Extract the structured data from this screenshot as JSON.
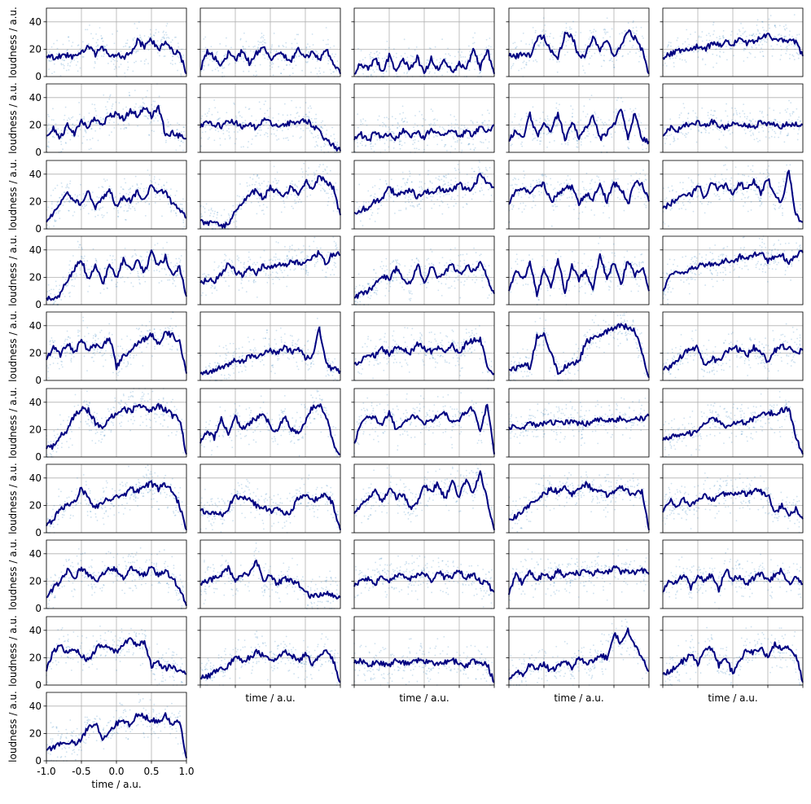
{
  "figure": {
    "layout": "small multiples grid, 10 rows x 5 columns, 46 panels, shared axes",
    "xlabel": "time / a.u.",
    "ylabel": "loudness / a.u.",
    "x_ticks": [
      "-1.0",
      "-0.5",
      "0.0",
      "0.5",
      "1.0"
    ],
    "y_ticks": [
      "0",
      "20",
      "40"
    ]
  },
  "chart_data": {
    "type": "line",
    "overlay": "scatter",
    "description_of_marks": "each panel: light blue scatter of raw loudness samples with a dark navy smoothed line",
    "xlim": [
      -1.0,
      1.0
    ],
    "ylim": [
      0,
      50
    ],
    "xlabel": "time / a.u.",
    "ylabel": "loudness / a.u.",
    "grid": true,
    "line_color": "#000080",
    "scatter_color": "#1f77b4",
    "x": [
      -1.0,
      -0.9,
      -0.8,
      -0.7,
      -0.6,
      -0.5,
      -0.4,
      -0.3,
      -0.2,
      -0.1,
      0.0,
      0.1,
      0.2,
      0.3,
      0.4,
      0.5,
      0.6,
      0.7,
      0.8,
      0.9,
      1.0
    ],
    "series": [
      {
        "values": [
          15,
          14,
          15,
          16,
          14,
          17,
          23,
          16,
          22,
          15,
          16,
          14,
          17,
          26,
          22,
          27,
          19,
          26,
          18,
          18,
          2
        ]
      },
      {
        "values": [
          5,
          19,
          14,
          8,
          17,
          12,
          19,
          10,
          17,
          21,
          13,
          18,
          15,
          12,
          20,
          14,
          18,
          12,
          20,
          10,
          2
        ]
      },
      {
        "values": [
          2,
          10,
          5,
          14,
          3,
          15,
          4,
          12,
          6,
          14,
          2,
          13,
          5,
          12,
          3,
          10,
          4,
          22,
          6,
          20,
          2
        ]
      },
      {
        "values": [
          15,
          15,
          16,
          15,
          27,
          30,
          18,
          14,
          31,
          30,
          14,
          16,
          30,
          18,
          27,
          14,
          22,
          33,
          28,
          20,
          2
        ]
      },
      {
        "values": [
          14,
          16,
          18,
          20,
          21,
          22,
          20,
          24,
          23,
          25,
          24,
          27,
          24,
          26,
          28,
          30,
          27,
          26,
          27,
          25,
          15
        ]
      },
      {
        "values": [
          12,
          17,
          10,
          20,
          14,
          22,
          18,
          25,
          21,
          26,
          28,
          24,
          31,
          27,
          33,
          26,
          34,
          13,
          14,
          12,
          10
        ]
      },
      {
        "values": [
          18,
          22,
          20,
          19,
          23,
          22,
          19,
          21,
          17,
          24,
          22,
          19,
          20,
          22,
          21,
          24,
          20,
          15,
          8,
          5,
          1
        ]
      },
      {
        "values": [
          9,
          13,
          8,
          15,
          11,
          14,
          10,
          17,
          12,
          15,
          10,
          18,
          13,
          12,
          17,
          11,
          15,
          12,
          19,
          14,
          20
        ]
      },
      {
        "values": [
          8,
          16,
          10,
          28,
          12,
          20,
          14,
          29,
          9,
          22,
          11,
          18,
          27,
          10,
          14,
          20,
          33,
          11,
          30,
          10,
          8
        ]
      },
      {
        "values": [
          12,
          18,
          16,
          20,
          21,
          22,
          19,
          23,
          20,
          18,
          22,
          21,
          20,
          19,
          22,
          21,
          20,
          19,
          21,
          20,
          20
        ]
      },
      {
        "values": [
          5,
          12,
          20,
          25,
          22,
          18,
          28,
          15,
          22,
          29,
          16,
          24,
          20,
          27,
          21,
          32,
          26,
          28,
          18,
          14,
          8
        ]
      },
      {
        "values": [
          6,
          4,
          5,
          2,
          3,
          14,
          20,
          25,
          28,
          22,
          30,
          27,
          24,
          31,
          25,
          35,
          30,
          38,
          34,
          30,
          10
        ]
      },
      {
        "values": [
          12,
          14,
          16,
          20,
          22,
          30,
          25,
          27,
          29,
          23,
          28,
          26,
          30,
          27,
          29,
          33,
          28,
          31,
          40,
          33,
          30
        ]
      },
      {
        "values": [
          18,
          28,
          30,
          26,
          31,
          33,
          20,
          25,
          31,
          30,
          18,
          26,
          22,
          32,
          20,
          33,
          30,
          18,
          34,
          33,
          20
        ]
      },
      {
        "values": [
          15,
          18,
          22,
          26,
          24,
          33,
          22,
          35,
          29,
          32,
          25,
          33,
          29,
          35,
          26,
          37,
          24,
          20,
          43,
          10,
          5
        ]
      },
      {
        "values": [
          5,
          4,
          8,
          18,
          26,
          33,
          18,
          30,
          15,
          28,
          20,
          33,
          25,
          32,
          23,
          38,
          28,
          35,
          22,
          28,
          6
        ]
      },
      {
        "values": [
          16,
          18,
          17,
          22,
          30,
          24,
          22,
          26,
          23,
          29,
          27,
          30,
          28,
          33,
          30,
          32,
          35,
          38,
          30,
          38,
          36
        ]
      },
      {
        "values": [
          5,
          8,
          10,
          15,
          22,
          18,
          26,
          20,
          14,
          30,
          16,
          28,
          20,
          24,
          30,
          22,
          28,
          25,
          30,
          20,
          8
        ]
      },
      {
        "values": [
          10,
          25,
          18,
          30,
          8,
          25,
          14,
          32,
          10,
          28,
          18,
          25,
          12,
          35,
          20,
          30,
          15,
          32,
          22,
          28,
          10
        ]
      },
      {
        "values": [
          10,
          20,
          24,
          22,
          26,
          28,
          29,
          30,
          30,
          32,
          31,
          35,
          34,
          36,
          38,
          32,
          34,
          37,
          30,
          36,
          38
        ]
      },
      {
        "values": [
          15,
          25,
          18,
          28,
          20,
          30,
          22,
          26,
          24,
          32,
          10,
          18,
          22,
          28,
          30,
          34,
          26,
          35,
          33,
          28,
          5
        ]
      },
      {
        "values": [
          5,
          6,
          8,
          10,
          12,
          15,
          14,
          18,
          17,
          20,
          22,
          20,
          24,
          21,
          23,
          16,
          17,
          38,
          12,
          8,
          7
        ]
      },
      {
        "values": [
          12,
          15,
          20,
          18,
          23,
          19,
          25,
          22,
          20,
          27,
          24,
          21,
          25,
          22,
          26,
          20,
          27,
          29,
          30,
          10,
          5
        ]
      },
      {
        "values": [
          8,
          8,
          12,
          10,
          32,
          35,
          20,
          5,
          10,
          12,
          14,
          28,
          30,
          34,
          36,
          38,
          40,
          39,
          36,
          20,
          2
        ]
      },
      {
        "values": [
          8,
          10,
          14,
          20,
          22,
          24,
          10,
          16,
          14,
          20,
          25,
          22,
          18,
          24,
          20,
          14,
          22,
          25,
          24,
          20,
          22
        ]
      },
      {
        "values": [
          6,
          8,
          15,
          20,
          30,
          35,
          34,
          25,
          20,
          28,
          32,
          35,
          33,
          38,
          36,
          34,
          37,
          35,
          30,
          28,
          2
        ]
      },
      {
        "values": [
          10,
          18,
          14,
          28,
          16,
          30,
          20,
          25,
          28,
          33,
          22,
          18,
          30,
          20,
          18,
          26,
          36,
          38,
          30,
          10,
          2
        ]
      },
      {
        "values": [
          10,
          25,
          30,
          28,
          24,
          33,
          20,
          26,
          28,
          31,
          25,
          27,
          30,
          32,
          24,
          28,
          33,
          36,
          18,
          40,
          2
        ]
      },
      {
        "values": [
          22,
          23,
          22,
          24,
          23,
          24,
          25,
          26,
          25,
          26,
          25,
          24,
          26,
          27,
          26,
          27,
          28,
          26,
          29,
          28,
          30
        ]
      },
      {
        "values": [
          12,
          14,
          16,
          18,
          17,
          20,
          25,
          29,
          27,
          22,
          24,
          26,
          25,
          28,
          30,
          33,
          31,
          34,
          35,
          15,
          2
        ]
      },
      {
        "values": [
          5,
          10,
          18,
          20,
          22,
          33,
          24,
          18,
          22,
          25,
          26,
          27,
          32,
          30,
          34,
          36,
          32,
          35,
          30,
          20,
          2
        ]
      },
      {
        "values": [
          16,
          14,
          15,
          13,
          18,
          27,
          24,
          26,
          20,
          18,
          16,
          17,
          14,
          15,
          26,
          28,
          24,
          25,
          28,
          20,
          2
        ]
      },
      {
        "values": [
          14,
          20,
          24,
          30,
          22,
          32,
          26,
          28,
          18,
          22,
          34,
          30,
          36,
          24,
          38,
          26,
          40,
          28,
          44,
          24,
          2
        ]
      },
      {
        "values": [
          10,
          12,
          16,
          20,
          25,
          28,
          32,
          30,
          34,
          28,
          32,
          36,
          32,
          30,
          28,
          30,
          34,
          30,
          28,
          30,
          2
        ]
      },
      {
        "values": [
          15,
          24,
          18,
          25,
          20,
          23,
          28,
          24,
          26,
          29,
          27,
          30,
          28,
          31,
          30,
          28,
          14,
          20,
          12,
          18,
          10
        ]
      },
      {
        "values": [
          8,
          15,
          20,
          28,
          22,
          30,
          24,
          20,
          25,
          30,
          28,
          22,
          30,
          26,
          25,
          30,
          24,
          28,
          22,
          15,
          2
        ]
      },
      {
        "values": [
          18,
          20,
          22,
          25,
          30,
          20,
          25,
          24,
          35,
          20,
          24,
          18,
          22,
          20,
          18,
          12,
          8,
          10,
          12,
          10,
          8
        ]
      },
      {
        "values": [
          16,
          20,
          22,
          18,
          24,
          20,
          25,
          23,
          22,
          24,
          26,
          20,
          27,
          22,
          24,
          28,
          22,
          25,
          20,
          18,
          12
        ]
      },
      {
        "values": [
          10,
          25,
          18,
          28,
          20,
          26,
          22,
          28,
          24,
          25,
          26,
          27,
          25,
          28,
          26,
          30,
          27,
          28,
          26,
          28,
          25
        ]
      },
      {
        "values": [
          12,
          20,
          18,
          26,
          15,
          24,
          20,
          25,
          14,
          28,
          22,
          24,
          18,
          22,
          26,
          20,
          24,
          28,
          18,
          24,
          18
        ]
      },
      {
        "values": [
          10,
          25,
          28,
          24,
          26,
          22,
          18,
          26,
          30,
          28,
          24,
          30,
          33,
          28,
          32,
          14,
          16,
          12,
          14,
          10,
          8
        ]
      },
      {
        "values": [
          5,
          6,
          10,
          12,
          14,
          22,
          18,
          20,
          24,
          22,
          18,
          20,
          24,
          22,
          18,
          22,
          16,
          20,
          25,
          18,
          2
        ]
      },
      {
        "values": [
          16,
          18,
          14,
          17,
          16,
          15,
          18,
          16,
          17,
          18,
          17,
          16,
          15,
          17,
          18,
          16,
          14,
          18,
          16,
          15,
          2
        ]
      },
      {
        "values": [
          4,
          10,
          8,
          15,
          12,
          16,
          10,
          14,
          18,
          12,
          20,
          16,
          18,
          22,
          20,
          38,
          30,
          40,
          28,
          20,
          10
        ]
      },
      {
        "values": [
          8,
          10,
          14,
          18,
          22,
          16,
          25,
          28,
          14,
          20,
          8,
          18,
          26,
          24,
          28,
          20,
          30,
          26,
          28,
          22,
          2
        ]
      },
      {
        "values": [
          8,
          10,
          12,
          14,
          13,
          15,
          25,
          28,
          16,
          22,
          27,
          30,
          26,
          34,
          32,
          30,
          28,
          33,
          26,
          30,
          2
        ]
      }
    ]
  }
}
